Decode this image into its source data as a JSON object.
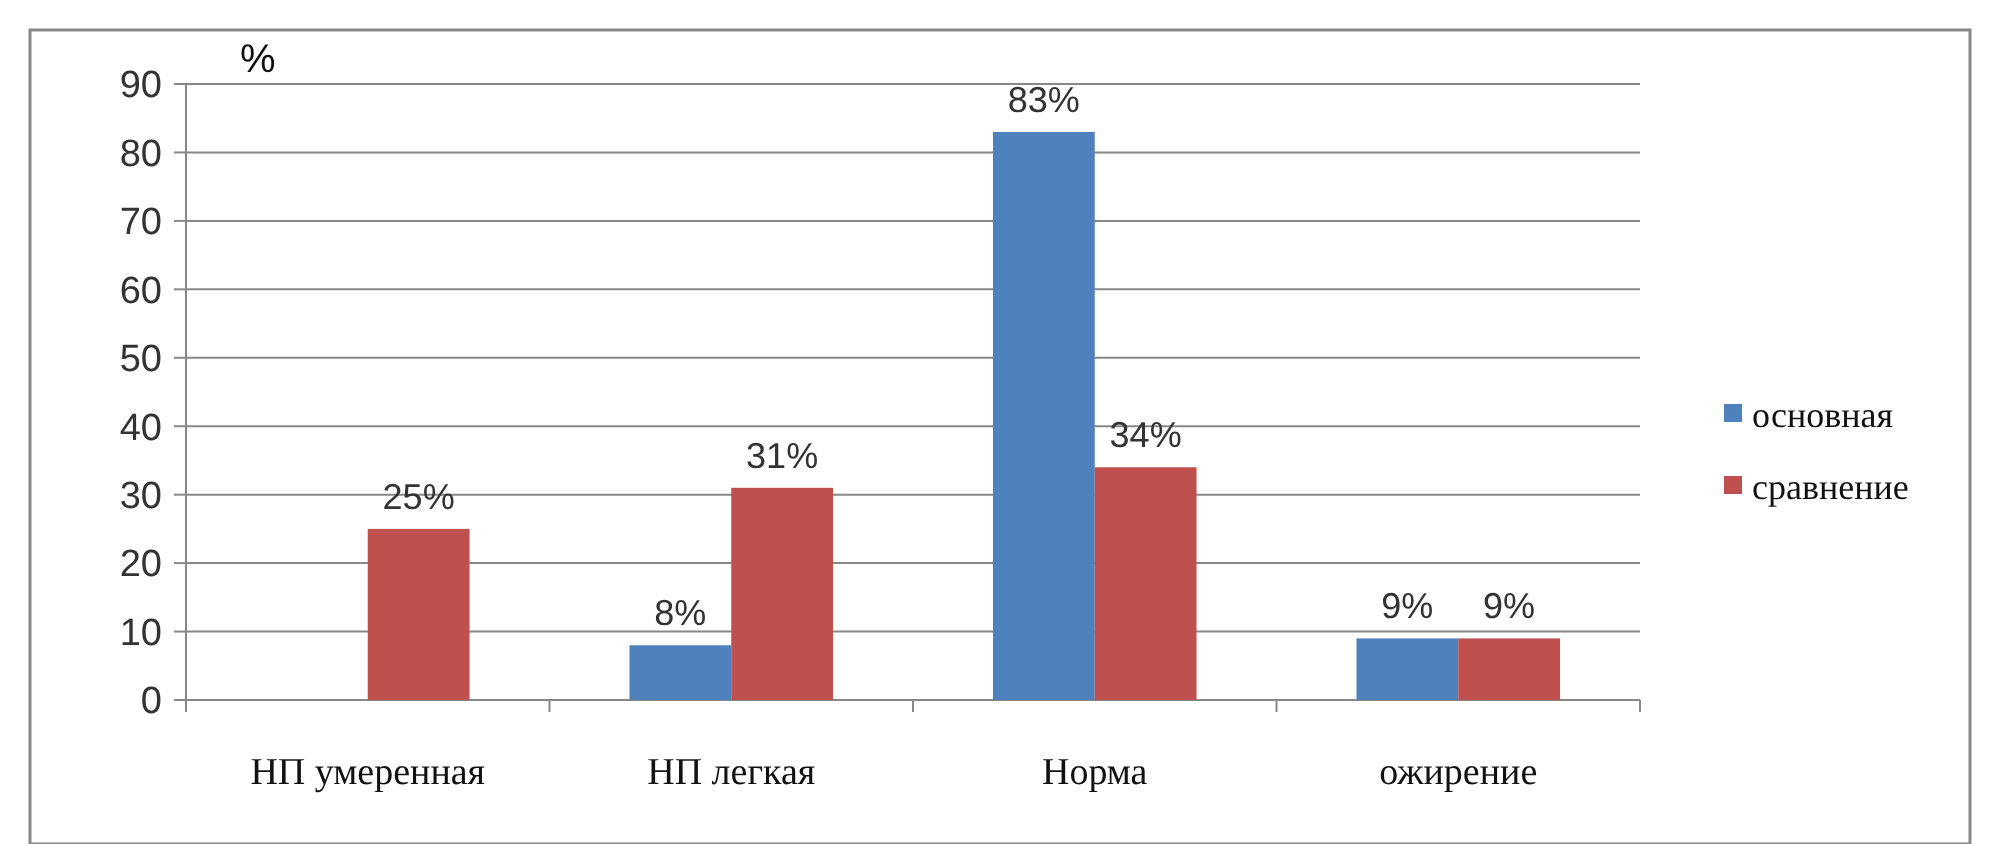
{
  "chart_data": {
    "type": "bar",
    "ylabel": "%",
    "categories": [
      "НП умеренная",
      "НП легкая",
      "Норма",
      "ожирение"
    ],
    "series": [
      {
        "name": "основная",
        "color": "#4f81bd",
        "values": [
          null,
          8,
          83,
          9
        ],
        "value_labels": [
          null,
          "8%",
          "83%",
          "9%"
        ]
      },
      {
        "name": "сравнение",
        "color": "#c0504d",
        "values": [
          25,
          31,
          34,
          9
        ],
        "value_labels": [
          "25%",
          "31%",
          "34%",
          "9%"
        ]
      }
    ],
    "ylim": [
      0,
      90
    ],
    "yticks": [
      0,
      10,
      20,
      30,
      40,
      50,
      60,
      70,
      80,
      90
    ],
    "grid": "y",
    "legend": "right"
  }
}
